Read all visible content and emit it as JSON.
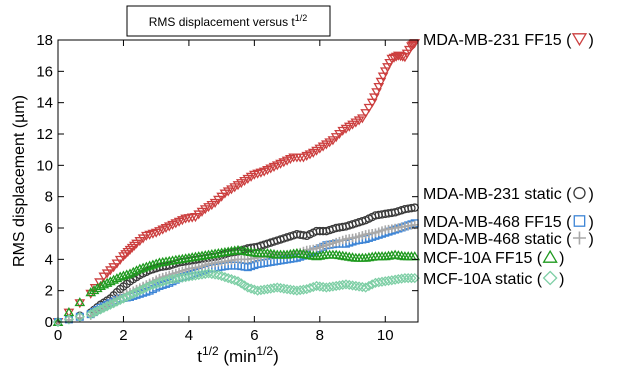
{
  "chart_data": {
    "type": "scatter",
    "title": "RMS displacement versus t",
    "title_sup": "1/2",
    "xlabel": {
      "base": "t",
      "sup": "1/2",
      "unit_base": " (min",
      "unit_sup": "1/2",
      "unit_close": ")"
    },
    "ylabel": "RMS displacement (µm)",
    "xlim": [
      0,
      11
    ],
    "ylim": [
      0,
      18
    ],
    "xticks": [
      0,
      2,
      4,
      6,
      8,
      10
    ],
    "yticks": [
      0,
      2,
      4,
      6,
      8,
      10,
      12,
      14,
      16,
      18
    ],
    "grid": false,
    "legend": "right",
    "series": [
      {
        "name": "MDA-MB-231 FF15",
        "legend_text": "MDA-MB-231 FF15 (",
        "marker": "triangle-down",
        "color": "#cc3f3f",
        "points": [
          [
            0,
            0
          ],
          [
            1.0,
            1.8
          ],
          [
            1.4,
            2.9
          ],
          [
            1.7,
            3.5
          ],
          [
            2.0,
            4.2
          ],
          [
            2.2,
            4.6
          ],
          [
            2.4,
            5.0
          ],
          [
            2.7,
            5.5
          ],
          [
            3.0,
            5.7
          ],
          [
            3.3,
            6.0
          ],
          [
            3.6,
            6.3
          ],
          [
            3.9,
            6.6
          ],
          [
            4.2,
            6.7
          ],
          [
            4.5,
            7.2
          ],
          [
            4.8,
            7.6
          ],
          [
            5.1,
            8.2
          ],
          [
            5.4,
            8.6
          ],
          [
            5.7,
            9.0
          ],
          [
            6.0,
            9.4
          ],
          [
            6.3,
            9.6
          ],
          [
            6.6,
            9.9
          ],
          [
            6.9,
            10.2
          ],
          [
            7.2,
            10.5
          ],
          [
            7.5,
            10.5
          ],
          [
            7.8,
            10.8
          ],
          [
            8.1,
            11.2
          ],
          [
            8.4,
            11.6
          ],
          [
            8.7,
            12.2
          ],
          [
            9.0,
            12.6
          ],
          [
            9.3,
            13.0
          ],
          [
            9.6,
            14.0
          ],
          [
            9.8,
            15.0
          ],
          [
            10.0,
            16.0
          ],
          [
            10.2,
            16.8
          ],
          [
            10.4,
            17.0
          ],
          [
            10.6,
            16.9
          ],
          [
            10.8,
            17.6
          ],
          [
            10.9,
            17.8
          ]
        ]
      },
      {
        "name": "MDA-MB-231 static",
        "legend_text": "MDA-MB-231 static (",
        "marker": "circle",
        "color": "#3a3a3a",
        "points": [
          [
            0,
            0
          ],
          [
            1.0,
            0.6
          ],
          [
            1.3,
            1.1
          ],
          [
            1.6,
            1.5
          ],
          [
            1.9,
            2.1
          ],
          [
            2.2,
            2.6
          ],
          [
            2.5,
            3.0
          ],
          [
            2.8,
            3.3
          ],
          [
            3.1,
            3.5
          ],
          [
            3.4,
            3.6
          ],
          [
            3.7,
            3.8
          ],
          [
            4.0,
            3.9
          ],
          [
            4.3,
            4.0
          ],
          [
            4.6,
            4.1
          ],
          [
            4.9,
            4.2
          ],
          [
            5.2,
            4.4
          ],
          [
            5.5,
            4.5
          ],
          [
            5.8,
            4.7
          ],
          [
            6.1,
            4.8
          ],
          [
            6.4,
            5.0
          ],
          [
            6.7,
            5.2
          ],
          [
            7.0,
            5.4
          ],
          [
            7.3,
            5.6
          ],
          [
            7.6,
            5.5
          ],
          [
            7.9,
            5.8
          ],
          [
            8.2,
            5.8
          ],
          [
            8.5,
            6.0
          ],
          [
            8.8,
            6.1
          ],
          [
            9.1,
            6.3
          ],
          [
            9.4,
            6.5
          ],
          [
            9.7,
            6.8
          ],
          [
            10.0,
            6.9
          ],
          [
            10.3,
            7.0
          ],
          [
            10.6,
            7.2
          ],
          [
            10.9,
            7.3
          ]
        ]
      },
      {
        "name": "MDA-MB-468 FF15",
        "legend_text": "MDA-MB-468 FF15 (",
        "marker": "square",
        "color": "#3d85d6",
        "points": [
          [
            0,
            0
          ],
          [
            1.0,
            0.5
          ],
          [
            1.3,
            0.9
          ],
          [
            1.6,
            1.2
          ],
          [
            1.9,
            1.5
          ],
          [
            2.2,
            1.6
          ],
          [
            2.5,
            1.8
          ],
          [
            2.8,
            2.0
          ],
          [
            3.1,
            2.3
          ],
          [
            3.4,
            2.5
          ],
          [
            3.7,
            2.8
          ],
          [
            4.0,
            3.0
          ],
          [
            4.3,
            3.2
          ],
          [
            4.6,
            3.4
          ],
          [
            4.9,
            3.5
          ],
          [
            5.2,
            3.6
          ],
          [
            5.5,
            3.6
          ],
          [
            5.8,
            3.5
          ],
          [
            6.1,
            3.7
          ],
          [
            6.4,
            3.8
          ],
          [
            6.7,
            3.9
          ],
          [
            7.0,
            4.0
          ],
          [
            7.3,
            4.1
          ],
          [
            7.6,
            4.3
          ],
          [
            7.9,
            4.6
          ],
          [
            8.2,
            4.9
          ],
          [
            8.5,
            5.0
          ],
          [
            8.8,
            5.0
          ],
          [
            9.1,
            5.2
          ],
          [
            9.4,
            5.3
          ],
          [
            9.7,
            5.5
          ],
          [
            10.0,
            5.7
          ],
          [
            10.3,
            5.9
          ],
          [
            10.6,
            6.1
          ],
          [
            10.9,
            6.3
          ]
        ]
      },
      {
        "name": "MDA-MB-468 static",
        "legend_text": "MDA-MB-468 static (",
        "marker": "plus",
        "color": "#a9a9a9",
        "points": [
          [
            0,
            0
          ],
          [
            1.0,
            0.4
          ],
          [
            1.3,
            0.8
          ],
          [
            1.6,
            1.2
          ],
          [
            1.9,
            1.6
          ],
          [
            2.2,
            1.9
          ],
          [
            2.5,
            2.2
          ],
          [
            2.8,
            2.5
          ],
          [
            3.1,
            2.8
          ],
          [
            3.4,
            3.0
          ],
          [
            3.7,
            3.2
          ],
          [
            4.0,
            3.4
          ],
          [
            4.3,
            3.5
          ],
          [
            4.6,
            3.7
          ],
          [
            4.9,
            3.8
          ],
          [
            5.2,
            3.9
          ],
          [
            5.5,
            4.0
          ],
          [
            5.8,
            4.0
          ],
          [
            6.1,
            4.1
          ],
          [
            6.4,
            4.2
          ],
          [
            6.7,
            4.3
          ],
          [
            7.0,
            4.3
          ],
          [
            7.3,
            4.4
          ],
          [
            7.6,
            4.6
          ],
          [
            7.9,
            4.7
          ],
          [
            8.2,
            4.9
          ],
          [
            8.5,
            5.1
          ],
          [
            8.8,
            5.3
          ],
          [
            9.1,
            5.4
          ],
          [
            9.4,
            5.6
          ],
          [
            9.7,
            5.7
          ],
          [
            10.0,
            5.9
          ],
          [
            10.3,
            6.0
          ],
          [
            10.6,
            6.1
          ],
          [
            10.9,
            6.2
          ]
        ]
      },
      {
        "name": "MCF-10A FF15",
        "legend_text": "MCF-10A FF15 (",
        "marker": "triangle-up",
        "color": "#1f9a1f",
        "points": [
          [
            0,
            0
          ],
          [
            1.0,
            1.9
          ],
          [
            1.3,
            2.3
          ],
          [
            1.6,
            2.6
          ],
          [
            1.9,
            2.9
          ],
          [
            2.2,
            3.1
          ],
          [
            2.5,
            3.4
          ],
          [
            2.8,
            3.6
          ],
          [
            3.1,
            3.8
          ],
          [
            3.4,
            3.9
          ],
          [
            3.7,
            4.0
          ],
          [
            4.0,
            4.1
          ],
          [
            4.3,
            4.2
          ],
          [
            4.6,
            4.3
          ],
          [
            4.9,
            4.4
          ],
          [
            5.2,
            4.5
          ],
          [
            5.5,
            4.6
          ],
          [
            5.8,
            4.5
          ],
          [
            6.1,
            4.4
          ],
          [
            6.4,
            4.4
          ],
          [
            6.7,
            4.3
          ],
          [
            7.0,
            4.3
          ],
          [
            7.3,
            4.4
          ],
          [
            7.6,
            4.3
          ],
          [
            7.9,
            4.2
          ],
          [
            8.2,
            4.3
          ],
          [
            8.5,
            4.3
          ],
          [
            8.8,
            4.2
          ],
          [
            9.1,
            4.1
          ],
          [
            9.4,
            4.1
          ],
          [
            9.7,
            4.2
          ],
          [
            10.0,
            4.2
          ],
          [
            10.3,
            4.3
          ],
          [
            10.6,
            4.2
          ],
          [
            10.9,
            4.2
          ]
        ]
      },
      {
        "name": "MCF-10A static",
        "legend_text": "MCF-10A static (",
        "marker": "diamond",
        "color": "#7fcfa6",
        "points": [
          [
            0,
            0
          ],
          [
            1.0,
            0.5
          ],
          [
            1.3,
            0.8
          ],
          [
            1.6,
            1.1
          ],
          [
            1.9,
            1.4
          ],
          [
            2.2,
            1.7
          ],
          [
            2.5,
            2.0
          ],
          [
            2.8,
            2.3
          ],
          [
            3.1,
            2.5
          ],
          [
            3.4,
            2.7
          ],
          [
            3.7,
            2.8
          ],
          [
            4.0,
            2.9
          ],
          [
            4.3,
            3.0
          ],
          [
            4.6,
            3.1
          ],
          [
            4.9,
            3.0
          ],
          [
            5.2,
            2.8
          ],
          [
            5.5,
            2.6
          ],
          [
            5.8,
            2.2
          ],
          [
            6.1,
            2.0
          ],
          [
            6.4,
            2.1
          ],
          [
            6.7,
            2.2
          ],
          [
            7.0,
            2.1
          ],
          [
            7.3,
            2.0
          ],
          [
            7.6,
            2.1
          ],
          [
            7.9,
            2.3
          ],
          [
            8.2,
            2.2
          ],
          [
            8.5,
            2.3
          ],
          [
            8.8,
            2.4
          ],
          [
            9.1,
            2.3
          ],
          [
            9.4,
            2.2
          ],
          [
            9.7,
            2.5
          ],
          [
            10.0,
            2.6
          ],
          [
            10.3,
            2.7
          ],
          [
            10.6,
            2.8
          ],
          [
            10.9,
            2.8
          ]
        ]
      }
    ]
  }
}
